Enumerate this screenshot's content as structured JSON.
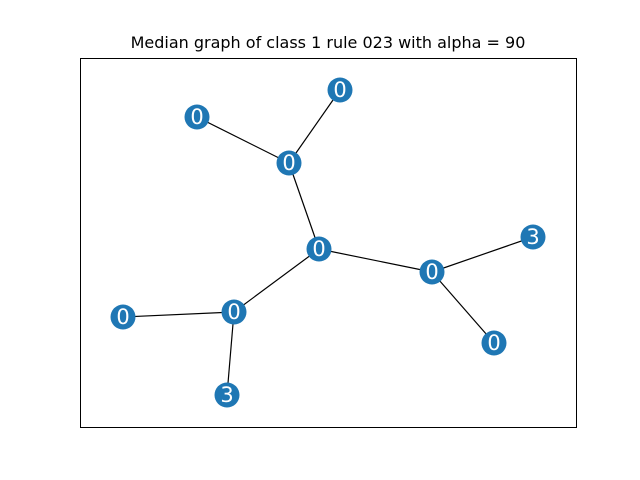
{
  "title": "Median graph of class 1 rule 023 with alpha = 90",
  "colors": {
    "node": "#1f77b4",
    "edge": "#000000",
    "label": "#ffffff",
    "frame": "#000000"
  },
  "nodes": [
    {
      "id": "n1",
      "label": "0"
    },
    {
      "id": "n2",
      "label": "0"
    },
    {
      "id": "n3",
      "label": "0"
    },
    {
      "id": "n4",
      "label": "0"
    },
    {
      "id": "n5",
      "label": "0"
    },
    {
      "id": "n6",
      "label": "3"
    },
    {
      "id": "n7",
      "label": "0"
    },
    {
      "id": "n8",
      "label": "0"
    },
    {
      "id": "n9",
      "label": "0"
    },
    {
      "id": "n10",
      "label": "3"
    }
  ],
  "edges": [
    [
      "n1",
      "n3"
    ],
    [
      "n2",
      "n3"
    ],
    [
      "n3",
      "n4"
    ],
    [
      "n4",
      "n5"
    ],
    [
      "n5",
      "n6"
    ],
    [
      "n5",
      "n7"
    ],
    [
      "n4",
      "n9"
    ],
    [
      "n8",
      "n9"
    ],
    [
      "n9",
      "n10"
    ]
  ]
}
